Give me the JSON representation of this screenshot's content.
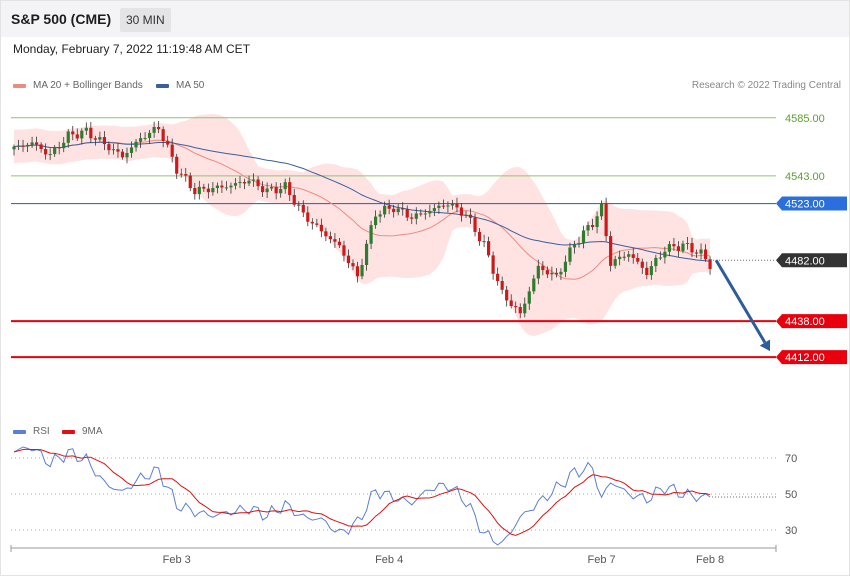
{
  "header": {
    "symbol": "S&P 500 (CME)",
    "interval": "30 MIN",
    "datetime": "Monday, February 7, 2022 11:19:48 AM CET"
  },
  "legend": {
    "ma20_label": "MA 20 + Bollinger Bands",
    "ma20_color": "#f08a7e",
    "ma50_label": "MA 50",
    "ma50_color": "#3a5f9c",
    "credit": "Research © 2022 Trading Central"
  },
  "rsi_legend": {
    "rsi_label": "RSI",
    "rsi_color": "#5b7fd6",
    "ma9_label": "9MA",
    "ma9_color": "#e01010"
  },
  "colors": {
    "bull": "#2e7d2e",
    "bear": "#d01818",
    "band_fill": "#ffe3e3",
    "support": "#e8000d",
    "resistance": "#8fc56b",
    "pivot": "#2a6fdb",
    "current": "#333333",
    "arrow": "#2d5c9b"
  },
  "chart_data": [
    {
      "type": "candlestick",
      "ylim": [
        4368,
        4600
      ],
      "x_labels": [
        "Feb 3",
        "Feb 4",
        "Feb 7",
        "Feb 8"
      ],
      "levels": [
        {
          "label": "4585.00",
          "value": 4585,
          "kind": "resistance"
        },
        {
          "label": "4543.00",
          "value": 4543,
          "kind": "resistance"
        },
        {
          "label": "4523.00",
          "value": 4523,
          "kind": "pivot"
        },
        {
          "label": "4482.00",
          "value": 4482,
          "kind": "current"
        },
        {
          "label": "4438.00",
          "value": 4438,
          "kind": "support"
        },
        {
          "label": "4412.00",
          "value": 4412,
          "kind": "support"
        }
      ],
      "projection": {
        "from": 4482,
        "to": 4412
      },
      "waypoints": [
        [
          0,
          4563
        ],
        [
          4,
          4567
        ],
        [
          8,
          4558
        ],
        [
          12,
          4572
        ],
        [
          16,
          4575
        ],
        [
          20,
          4566
        ],
        [
          24,
          4557
        ],
        [
          28,
          4570
        ],
        [
          32,
          4578
        ],
        [
          36,
          4548
        ],
        [
          40,
          4532
        ],
        [
          44,
          4534
        ],
        [
          48,
          4536
        ],
        [
          52,
          4540
        ],
        [
          56,
          4532
        ],
        [
          60,
          4535
        ],
        [
          64,
          4515
        ],
        [
          68,
          4503
        ],
        [
          72,
          4492
        ],
        [
          76,
          4470
        ],
        [
          80,
          4516
        ],
        [
          84,
          4520
        ],
        [
          88,
          4513
        ],
        [
          92,
          4518
        ],
        [
          96,
          4523
        ],
        [
          100,
          4515
        ],
        [
          104,
          4493
        ],
        [
          108,
          4458
        ],
        [
          112,
          4443
        ],
        [
          116,
          4477
        ],
        [
          120,
          4470
        ],
        [
          124,
          4494
        ],
        [
          128,
          4509
        ],
        [
          130,
          4520
        ],
        [
          132,
          4480
        ],
        [
          136,
          4487
        ],
        [
          140,
          4473
        ],
        [
          144,
          4490
        ],
        [
          148,
          4493
        ],
        [
          152,
          4487
        ],
        [
          154,
          4478
        ]
      ],
      "series": [
        {
          "name": "MA 20 + Bollinger Bands"
        },
        {
          "name": "MA 50"
        }
      ]
    },
    {
      "type": "line",
      "ylim": [
        20,
        80
      ],
      "y_ticks": [
        70,
        50,
        30
      ],
      "waypoints": [
        [
          0,
          74
        ],
        [
          4,
          76
        ],
        [
          8,
          67
        ],
        [
          12,
          73
        ],
        [
          16,
          69
        ],
        [
          20,
          56
        ],
        [
          24,
          51
        ],
        [
          28,
          59
        ],
        [
          32,
          63
        ],
        [
          36,
          44
        ],
        [
          40,
          40
        ],
        [
          44,
          38
        ],
        [
          48,
          40
        ],
        [
          52,
          42
        ],
        [
          56,
          38
        ],
        [
          60,
          44
        ],
        [
          64,
          37
        ],
        [
          68,
          36
        ],
        [
          72,
          28
        ],
        [
          76,
          34
        ],
        [
          80,
          52
        ],
        [
          84,
          48
        ],
        [
          88,
          45
        ],
        [
          92,
          53
        ],
        [
          96,
          55
        ],
        [
          100,
          46
        ],
        [
          104,
          28
        ],
        [
          108,
          22
        ],
        [
          112,
          37
        ],
        [
          116,
          45
        ],
        [
          120,
          53
        ],
        [
          124,
          62
        ],
        [
          128,
          65
        ],
        [
          130,
          47
        ],
        [
          132,
          57
        ],
        [
          136,
          50
        ],
        [
          140,
          47
        ],
        [
          144,
          54
        ],
        [
          148,
          50
        ],
        [
          152,
          48
        ],
        [
          154,
          49
        ]
      ],
      "series": [
        {
          "name": "RSI"
        },
        {
          "name": "9MA"
        }
      ]
    }
  ]
}
